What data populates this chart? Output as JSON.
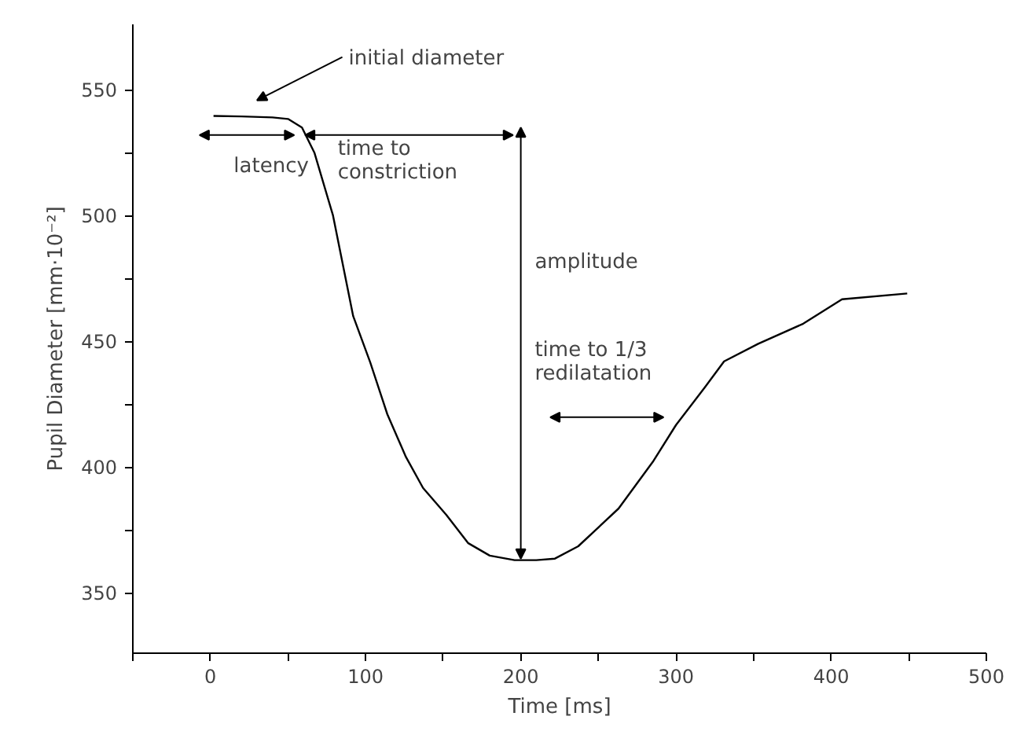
{
  "chart_data": {
    "type": "line",
    "xlabel": "Time [ms]",
    "ylabel": "Pupil Diameter [mm·10⁻²]",
    "x": [
      2,
      20,
      40,
      50,
      59,
      67,
      79,
      92,
      103,
      114,
      126,
      137,
      152,
      166,
      180,
      196,
      210,
      222,
      237,
      263,
      285,
      300,
      319,
      331,
      353,
      382,
      407,
      449
    ],
    "series": [
      {
        "color": "#000000",
        "values": [
          539.6,
          539.4,
          539,
          538.4,
          535,
          525,
          500,
          460,
          441.6,
          421,
          404,
          391.7,
          381,
          369.8,
          364.8,
          363,
          363,
          363.6,
          368.5,
          383.5,
          402,
          416.7,
          432,
          442,
          449,
          457,
          466.7,
          469
        ]
      }
    ],
    "xlim": [
      -50,
      500
    ],
    "xticks": [
      {
        "value": -50,
        "label": null
      },
      0,
      {
        "value": 50,
        "label": null
      },
      100,
      {
        "value": 150,
        "label": null
      },
      200,
      {
        "value": 250,
        "label": null
      },
      300,
      {
        "value": 350,
        "label": null
      },
      400,
      {
        "value": 450,
        "label": null
      },
      500
    ],
    "ylim": [
      326,
      576
    ],
    "yticks": [
      350,
      {
        "value": 375,
        "label": null
      },
      400,
      {
        "value": 425,
        "label": null
      },
      450,
      {
        "value": 475,
        "label": null
      },
      500,
      {
        "value": 525,
        "label": null
      },
      550
    ],
    "grid": false,
    "marker": "none",
    "line_style": "solid",
    "annotations": [
      "initial diameter",
      "latency",
      "time to\nconstriction",
      "amplitude",
      "time to 1/3\nredilatation"
    ]
  }
}
